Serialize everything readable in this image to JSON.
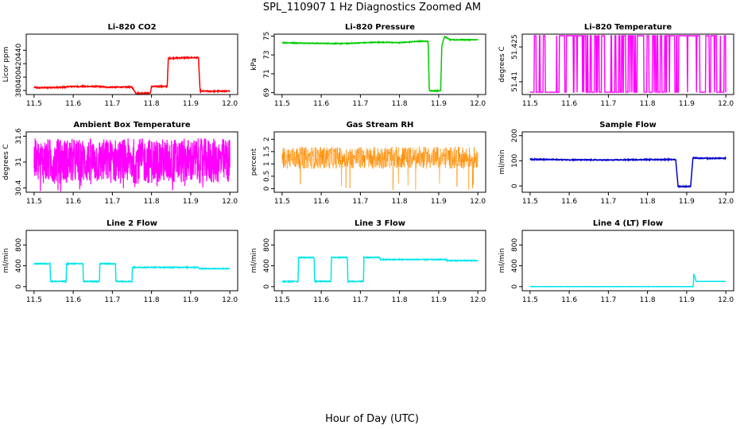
{
  "figure": {
    "title": "SPL_110907  1 Hz Diagnostics Zoomed AM",
    "xlabel": "Hour of Day (UTC)"
  },
  "chart_data": [
    {
      "type": "line",
      "title": "Li-820 CO2",
      "ylabel": "Licor ppm",
      "color": "#ff0000",
      "xlim": [
        11.48,
        12.02
      ],
      "xticks": [
        11.5,
        11.6,
        11.7,
        11.8,
        11.9,
        12.0
      ],
      "ylim": [
        374,
        464
      ],
      "yticks": [
        380,
        400,
        420,
        440
      ],
      "series": [
        {
          "x": [
            11.5,
            11.51,
            11.58,
            11.59,
            11.67,
            11.68,
            11.75,
            11.76,
            11.797,
            11.8,
            11.84,
            11.843,
            11.89,
            11.92,
            11.924,
            12.0
          ],
          "y": [
            385,
            384,
            385,
            386,
            386,
            385,
            385,
            376,
            376,
            386,
            386,
            428,
            429,
            429,
            379,
            379
          ]
        }
      ],
      "noise": 0.8
    },
    {
      "type": "line",
      "title": "Li-820 Pressure",
      "ylabel": "kPa",
      "color": "#00cc00",
      "xlim": [
        11.48,
        12.02
      ],
      "xticks": [
        11.5,
        11.6,
        11.7,
        11.8,
        11.9,
        12.0
      ],
      "ylim": [
        68.8,
        75.2
      ],
      "yticks": [
        69,
        71,
        73,
        75
      ],
      "series": [
        {
          "x": [
            11.5,
            11.55,
            11.65,
            11.75,
            11.8,
            11.85,
            11.873,
            11.876,
            11.905,
            11.908,
            11.915,
            11.93,
            12.0
          ],
          "y": [
            74.3,
            74.25,
            74.2,
            74.35,
            74.3,
            74.45,
            74.45,
            69.2,
            69.2,
            74.0,
            74.95,
            74.6,
            74.6
          ]
        }
      ],
      "noise": 0.04
    },
    {
      "type": "line",
      "title": "Li-820 Temperature",
      "ylabel": "degrees C",
      "color": "#ff00ff",
      "xlim": [
        11.48,
        12.02
      ],
      "xticks": [
        11.5,
        11.6,
        11.7,
        11.8,
        11.9,
        12.0
      ],
      "ylim": [
        51.4045,
        51.4305
      ],
      "yticks": [
        51.41,
        51.425
      ],
      "levels": [
        51.4055,
        51.4298
      ],
      "series": [
        {
          "x": [
            11.5,
            12.0
          ],
          "y": [
            51.4055,
            51.4055
          ]
        }
      ]
    },
    {
      "type": "line",
      "title": "Ambient Box Temperature",
      "ylabel": "degrees C",
      "color": "#ff00ff",
      "xlim": [
        11.48,
        12.02
      ],
      "xticks": [
        11.5,
        11.6,
        11.7,
        11.8,
        11.9,
        12.0
      ],
      "ylim": [
        30.3,
        31.7
      ],
      "yticks": [
        30.4,
        31.0,
        31.6
      ],
      "band": [
        30.5,
        31.55
      ],
      "series": [
        {
          "x": [
            11.5,
            12.0
          ],
          "y": [
            31.0,
            31.0
          ]
        }
      ]
    },
    {
      "type": "scatter",
      "title": "Gas Stream RH",
      "ylabel": "percent",
      "color": "#ff8c00",
      "xlim": [
        11.48,
        12.02
      ],
      "xticks": [
        11.5,
        11.6,
        11.7,
        11.8,
        11.9,
        12.0
      ],
      "ylim": [
        -0.15,
        2.3
      ],
      "yticks": [
        0.0,
        0.5,
        1.0,
        1.5,
        2.0
      ],
      "band": [
        0.8,
        1.7
      ],
      "series": [
        {
          "x": [
            11.5,
            12.0
          ],
          "y": [
            1.25,
            1.25
          ]
        }
      ]
    },
    {
      "type": "line",
      "title": "Sample Flow",
      "ylabel": "ml/min",
      "color": "#0000cc",
      "xlim": [
        11.48,
        12.02
      ],
      "xticks": [
        11.5,
        11.6,
        11.7,
        11.8,
        11.9,
        12.0
      ],
      "ylim": [
        -25,
        215
      ],
      "yticks": [
        0,
        100,
        200
      ],
      "series": [
        {
          "x": [
            11.5,
            11.6,
            11.7,
            11.8,
            11.872,
            11.878,
            11.91,
            11.916,
            11.93,
            12.0
          ],
          "y": [
            106,
            104,
            103,
            105,
            105,
            -2,
            -2,
            112,
            110,
            110
          ]
        }
      ],
      "noise": 1.8
    },
    {
      "type": "line",
      "title": "Line 2 Flow",
      "ylabel": "ml/min",
      "color": "#00e5ee",
      "xlim": [
        11.48,
        12.02
      ],
      "xticks": [
        11.5,
        11.6,
        11.7,
        11.8,
        11.9,
        12.0
      ],
      "ylim": [
        -80,
        1080
      ],
      "yticks": [
        0,
        400,
        800
      ],
      "series": [
        {
          "x": [
            11.5,
            11.541,
            11.542,
            11.582,
            11.583,
            11.625,
            11.626,
            11.667,
            11.668,
            11.708,
            11.709,
            11.75,
            11.751,
            11.92,
            11.921,
            12.0
          ],
          "y": [
            440,
            440,
            100,
            100,
            440,
            440,
            100,
            100,
            440,
            440,
            100,
            100,
            370,
            370,
            345,
            345
          ]
        }
      ],
      "noise": 8
    },
    {
      "type": "line",
      "title": "Line 3 Flow",
      "ylabel": "ml/min",
      "color": "#00e5ee",
      "xlim": [
        11.48,
        12.02
      ],
      "xticks": [
        11.5,
        11.6,
        11.7,
        11.8,
        11.9,
        12.0
      ],
      "ylim": [
        -80,
        1080
      ],
      "yticks": [
        0,
        400,
        800
      ],
      "series": [
        {
          "x": [
            11.5,
            11.541,
            11.542,
            11.582,
            11.583,
            11.625,
            11.626,
            11.667,
            11.668,
            11.708,
            11.709,
            11.75,
            11.751,
            11.92,
            11.921,
            12.0
          ],
          "y": [
            100,
            100,
            560,
            560,
            100,
            100,
            560,
            560,
            100,
            100,
            560,
            560,
            520,
            520,
            500,
            500
          ]
        }
      ],
      "noise": 8
    },
    {
      "type": "line",
      "title": "Line 4 (LT) Flow",
      "ylabel": "ml/min",
      "color": "#00e5ee",
      "xlim": [
        11.48,
        12.02
      ],
      "xticks": [
        11.5,
        11.6,
        11.7,
        11.8,
        11.9,
        12.0
      ],
      "ylim": [
        -80,
        1080
      ],
      "yticks": [
        0,
        400,
        800
      ],
      "series": [
        {
          "x": [
            11.5,
            11.917,
            11.918,
            11.922,
            11.924,
            11.94,
            12.0
          ],
          "y": [
            0,
            0,
            240,
            160,
            100,
            100,
            100
          ]
        }
      ],
      "noise": 2
    }
  ]
}
